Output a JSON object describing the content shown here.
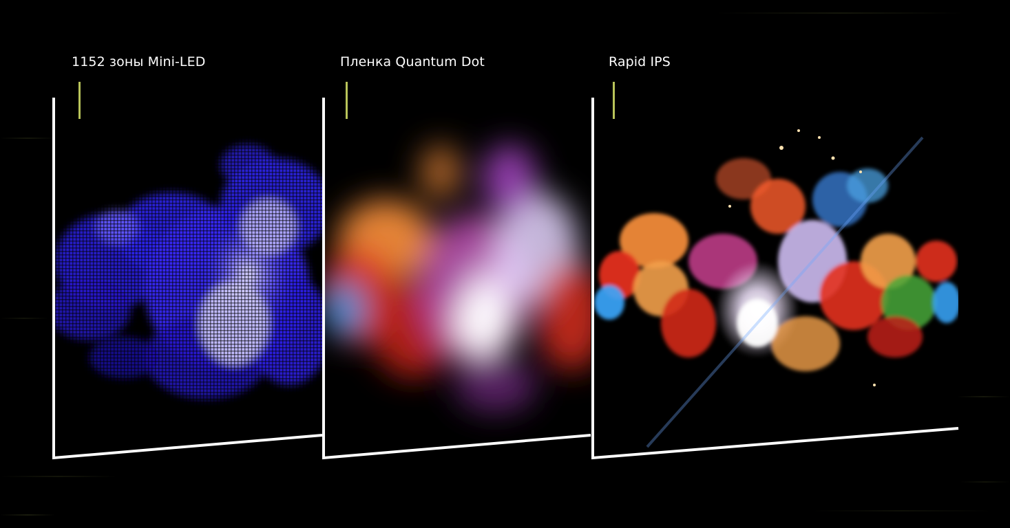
{
  "panels": [
    {
      "label": "1152 зоны Mini-LED",
      "icon": "mini-led-cloud-illustration"
    },
    {
      "label": "Пленка Quantum Dot",
      "icon": "quantum-dot-cloud-illustration"
    },
    {
      "label": "Rapid IPS",
      "icon": "rapid-ips-cloud-illustration"
    }
  ],
  "colors": {
    "background": "#000000",
    "frame": "#ffffff",
    "tick": "#b9c45a",
    "mini_led_blue": "#3b2cff",
    "warm_orange": "#f08a3a",
    "red": "#e3301f",
    "cyan": "#3aa9ff"
  }
}
